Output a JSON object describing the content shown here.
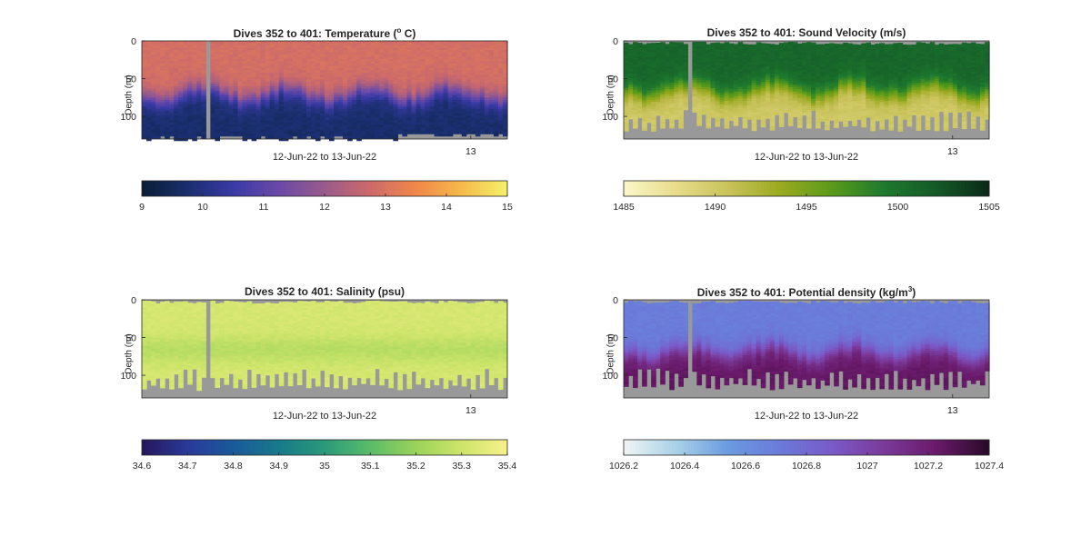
{
  "chart_data": [
    {
      "type": "heatmap",
      "title": "Dives 352 to 401: Temperature (",
      "title_sup": "o",
      "title_end": " C)",
      "ylabel": "Depth (m)",
      "xlabel": "12-Jun-22 to 13-Jun-22",
      "yticks": [
        0,
        50,
        100
      ],
      "ylim": [
        0,
        130
      ],
      "xtick_label": "13",
      "dives": [
        352,
        401
      ],
      "colorbar": {
        "min": 9,
        "max": 15,
        "ticks": [
          "9",
          "10",
          "11",
          "12",
          "13",
          "14",
          "15"
        ],
        "colormap": [
          "#0a1f35",
          "#1a2f6f",
          "#3a3aa6",
          "#6a4aa8",
          "#9a5a8a",
          "#cc6a6a",
          "#f0864a",
          "#f5b84a",
          "#f5f06a"
        ]
      },
      "surface_value": 12.9,
      "deep_value": 9.7,
      "thermocline_depth_m": 70,
      "gap_color": "#999999"
    },
    {
      "type": "heatmap",
      "title": "Dives 352 to 401: Sound Velocity (m/s)",
      "ylabel": "Depth (m)",
      "xlabel": "12-Jun-22 to 13-Jun-22",
      "yticks": [
        0,
        50,
        100
      ],
      "ylim": [
        0,
        130
      ],
      "xtick_label": "13",
      "colorbar": {
        "min": 1485,
        "max": 1505,
        "ticks": [
          "1485",
          "1490",
          "1495",
          "1500",
          "1505"
        ],
        "colormap": [
          "#fbf6c8",
          "#e6dc8a",
          "#c8c25a",
          "#9aaa20",
          "#5a9a1a",
          "#1e7a2e",
          "#145a28",
          "#0c2a18"
        ]
      },
      "surface_value": 1501,
      "deep_value": 1490,
      "thermocline_depth_m": 65,
      "gap_color": "#999999"
    },
    {
      "type": "heatmap",
      "title": "Dives 352 to 401: Salinity (psu)",
      "ylabel": "Depth (m)",
      "xlabel": "12-Jun-22 to 13-Jun-22",
      "yticks": [
        0,
        50,
        100
      ],
      "ylim": [
        0,
        130
      ],
      "xtick_label": "13",
      "colorbar": {
        "min": 34.6,
        "max": 35.4,
        "ticks": [
          "34.6",
          "34.7",
          "34.8",
          "34.9",
          "35",
          "35.1",
          "35.2",
          "35.3",
          "35.4"
        ],
        "colormap": [
          "#26185e",
          "#2a3a9a",
          "#1a5a9a",
          "#187a8a",
          "#2a9a7a",
          "#5abb6a",
          "#9ad25a",
          "#cde46a",
          "#f5f08a"
        ]
      },
      "surface_value": 35.32,
      "deep_value": 35.3,
      "mid_value": 35.26,
      "thermocline_depth_m": 70,
      "gap_color": "#999999"
    },
    {
      "type": "heatmap",
      "title": "Dives 352 to 401: Potential density (kg/m",
      "title_sup": "3",
      "title_end": ")",
      "ylabel": "Depth (m)",
      "xlabel": "12-Jun-22 to 13-Jun-22",
      "yticks": [
        0,
        50,
        100
      ],
      "ylim": [
        0,
        130
      ],
      "xtick_label": "13",
      "colorbar": {
        "min": 1026.2,
        "max": 1027.4,
        "ticks": [
          "1026.2",
          "1026.4",
          "1026.6",
          "1026.8",
          "1027",
          "1027.2",
          "1027.4"
        ],
        "colormap": [
          "#eef4f4",
          "#a8d0e6",
          "#6a9ae0",
          "#6a7ad8",
          "#7a5ac8",
          "#7a3a9a",
          "#6a1a6a",
          "#2a0a2a"
        ]
      },
      "surface_value": 1026.7,
      "deep_value": 1027.25,
      "thermocline_depth_m": 68,
      "gap_color": "#999999"
    }
  ]
}
